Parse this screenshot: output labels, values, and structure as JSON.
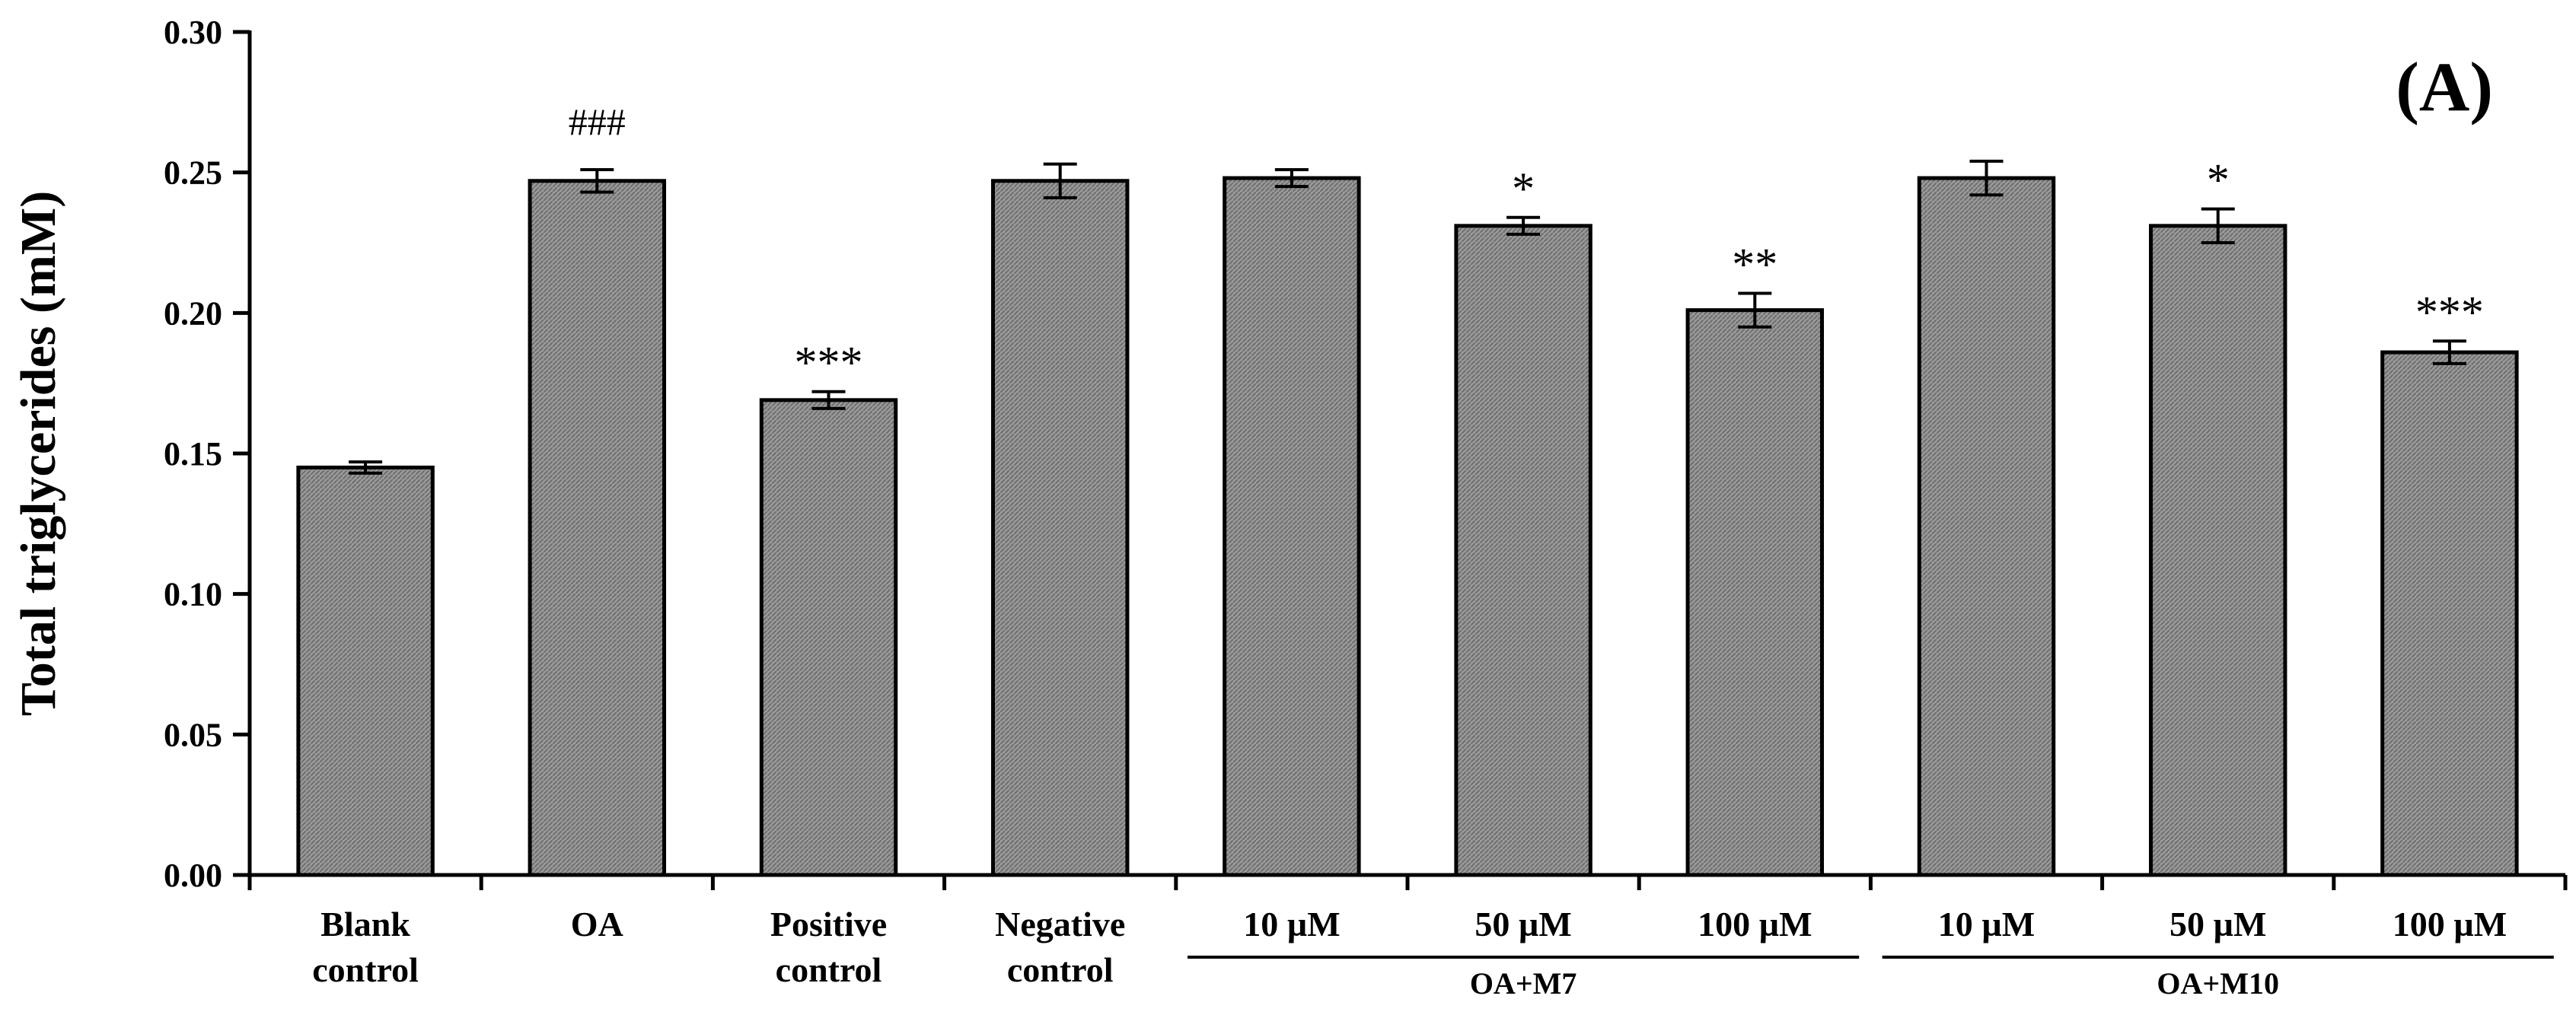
{
  "chart_data": {
    "type": "bar",
    "panel_label": "(A)",
    "ylabel": "Total triglycerides (mM)",
    "xlabel": "",
    "ylim": [
      0,
      0.3
    ],
    "yticks": [
      "0.00",
      "0.05",
      "0.10",
      "0.15",
      "0.20",
      "0.25",
      "0.30"
    ],
    "categories": [
      [
        "Blank",
        "control"
      ],
      [
        "OA"
      ],
      [
        "Positive",
        "control"
      ],
      [
        "Negative",
        "control"
      ],
      [
        "10 µM"
      ],
      [
        "50 µM"
      ],
      [
        "100 µM"
      ],
      [
        "10 µM"
      ],
      [
        "50 µM"
      ],
      [
        "100 µM"
      ]
    ],
    "values": [
      0.145,
      0.247,
      0.169,
      0.247,
      0.248,
      0.231,
      0.201,
      0.248,
      0.231,
      0.186
    ],
    "errors": [
      0.002,
      0.004,
      0.003,
      0.006,
      0.003,
      0.003,
      0.006,
      0.006,
      0.006,
      0.004
    ],
    "significance": [
      "",
      "###",
      "***",
      "",
      "",
      "*",
      "**",
      "",
      "*",
      "***"
    ],
    "groups": [
      {
        "label": "OA+M7",
        "from": 4,
        "to": 6
      },
      {
        "label": "OA+M10",
        "from": 7,
        "to": 9
      }
    ],
    "grid": false,
    "legend": "none",
    "colors": {
      "bar_fill": "#8c8c8c",
      "bar_edge": "#000000",
      "axis": "#000000"
    }
  }
}
